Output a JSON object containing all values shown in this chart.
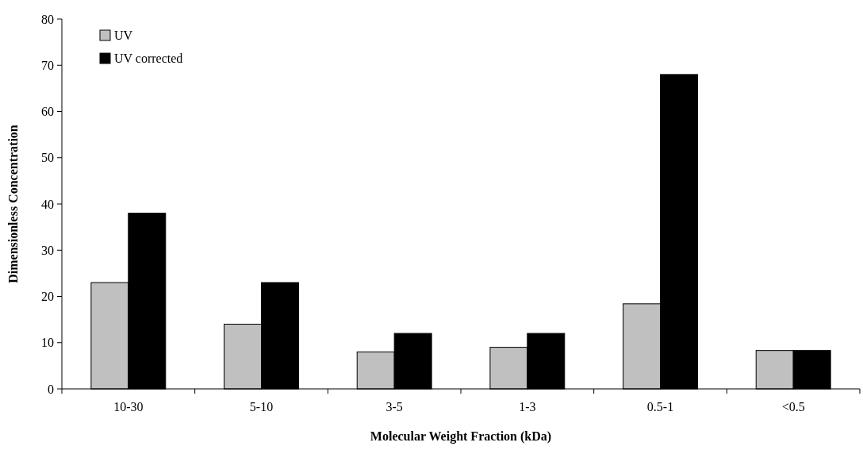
{
  "chart_data": {
    "type": "bar",
    "xlabel": "Molecular Weight Fraction (kDa)",
    "ylabel": "Dimensionless Concentration",
    "categories": [
      "10-30",
      "5-10",
      "3-5",
      "1-3",
      "0.5-1",
      "<0.5"
    ],
    "series": [
      {
        "name": "UV",
        "color": "#c0c0c0",
        "values": [
          23,
          14,
          8,
          9,
          18.4,
          8.3
        ]
      },
      {
        "name": "UV corrected",
        "color": "#000000",
        "values": [
          38,
          23,
          12,
          12,
          68,
          8.3
        ]
      }
    ],
    "ylim": [
      0,
      80
    ],
    "yticks": [
      0,
      10,
      20,
      30,
      40,
      50,
      60,
      70,
      80
    ],
    "legend": "top left"
  }
}
